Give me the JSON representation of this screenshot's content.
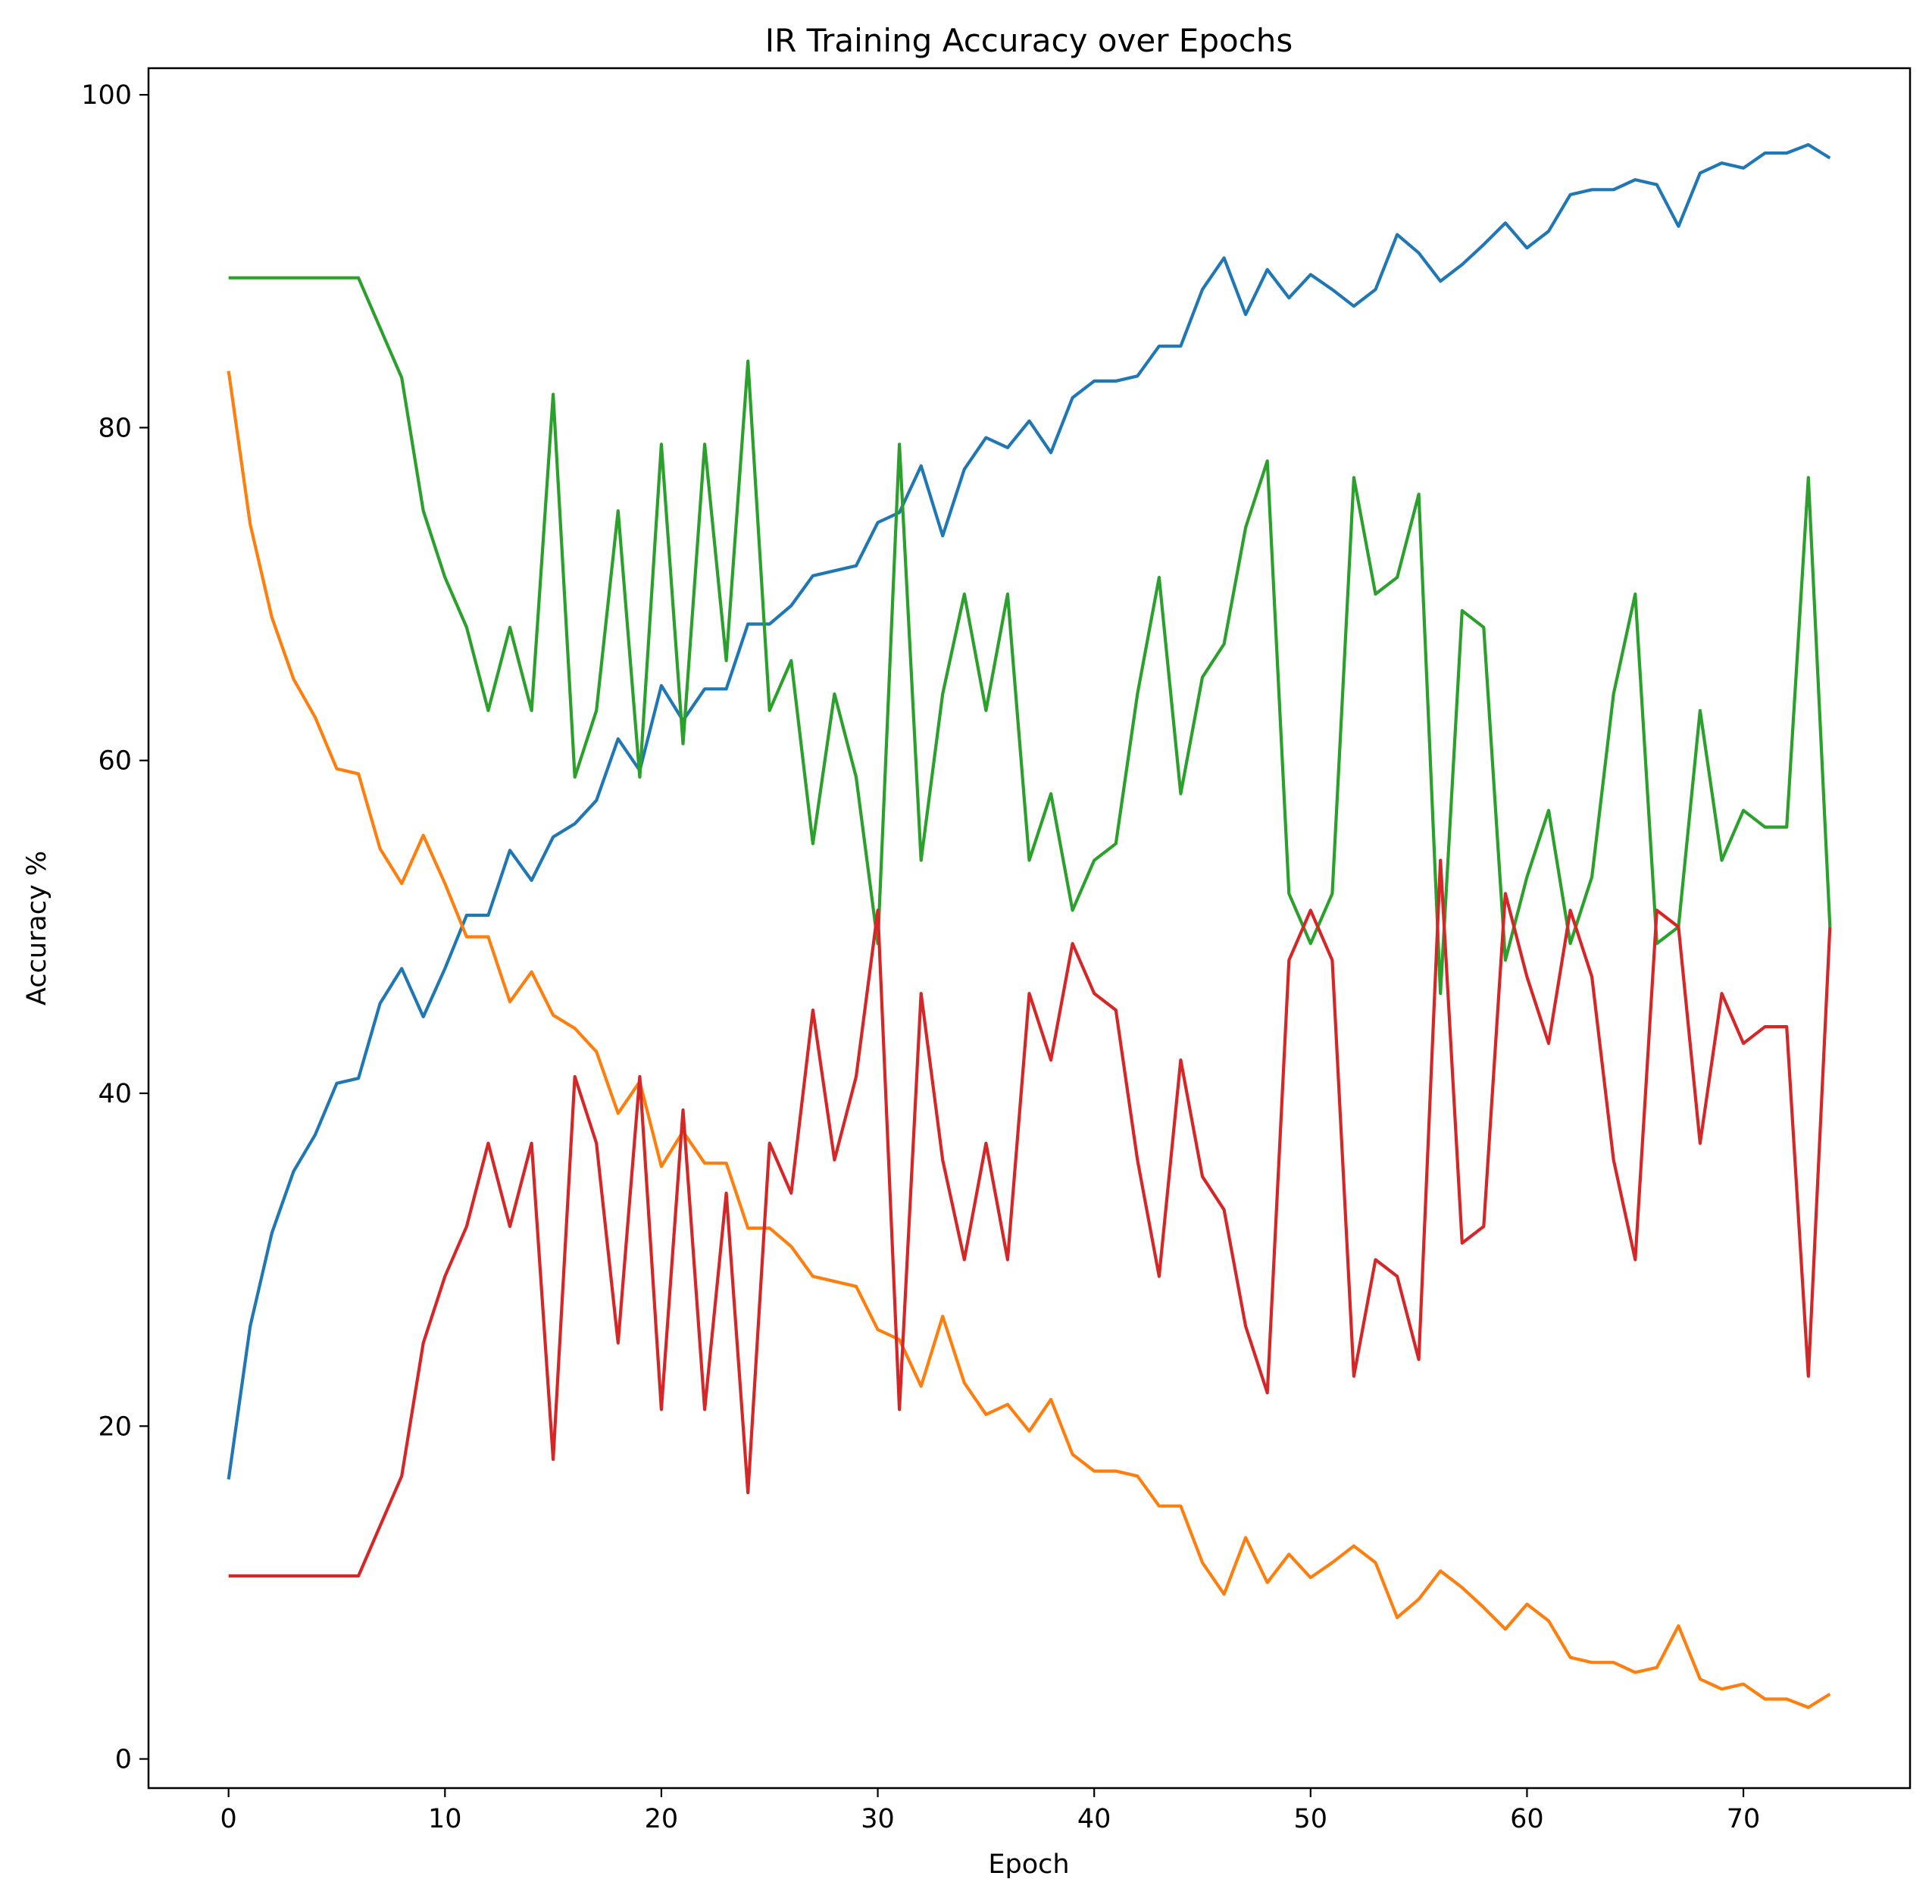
{
  "chart_data": {
    "type": "line",
    "title": "IR Training Accuracy over Epochs",
    "xlabel": "Epoch",
    "ylabel": "Accuracy %",
    "xlim": [
      -3.7,
      77.7
    ],
    "ylim": [
      -1.75,
      101.6
    ],
    "xticks": [
      0,
      10,
      20,
      30,
      40,
      50,
      60,
      70
    ],
    "yticks": [
      0,
      20,
      40,
      60,
      80,
      100
    ],
    "grid": false,
    "legend": "none",
    "series": [
      {
        "color": "#1f77b4",
        "values": [
          16.8,
          26.0,
          31.6,
          35.3,
          37.5,
          40.6,
          40.9,
          45.4,
          47.5,
          44.6,
          47.5,
          50.7,
          50.7,
          54.6,
          52.8,
          55.4,
          56.2,
          57.6,
          61.3,
          59.4,
          64.5,
          62.4,
          64.3,
          64.3,
          68.2,
          68.2,
          69.3,
          71.1,
          71.4,
          71.7,
          74.3,
          74.9,
          77.7,
          73.5,
          77.5,
          79.4,
          78.8,
          80.4,
          78.5,
          81.8,
          82.8,
          82.8,
          83.1,
          84.9,
          84.9,
          88.3,
          90.2,
          86.8,
          89.5,
          87.8,
          89.2,
          88.3,
          87.3,
          88.3,
          91.6,
          90.5,
          88.8,
          89.8,
          91.0,
          92.3,
          90.8,
          91.8,
          94.0,
          94.3,
          94.3,
          94.9,
          94.6,
          92.1,
          95.3,
          95.9,
          95.6,
          96.5,
          96.5,
          97.0,
          96.2
        ]
      },
      {
        "color": "#ff7f0e",
        "values": [
          83.4,
          74.2,
          68.6,
          64.9,
          62.6,
          59.5,
          59.2,
          54.7,
          52.6,
          55.5,
          52.6,
          49.4,
          49.4,
          45.5,
          47.3,
          44.7,
          43.9,
          42.5,
          38.8,
          40.7,
          35.6,
          37.7,
          35.8,
          35.8,
          31.9,
          31.9,
          30.8,
          29.0,
          28.7,
          28.4,
          25.8,
          25.2,
          22.4,
          26.6,
          22.6,
          20.7,
          21.3,
          19.7,
          21.6,
          18.3,
          17.3,
          17.3,
          17.0,
          15.2,
          15.2,
          11.8,
          9.9,
          13.3,
          10.6,
          12.3,
          10.9,
          11.8,
          12.8,
          11.8,
          8.5,
          9.6,
          11.3,
          10.3,
          9.1,
          7.8,
          9.3,
          8.3,
          6.1,
          5.8,
          5.8,
          5.2,
          5.5,
          8.0,
          4.8,
          4.2,
          4.5,
          3.6,
          3.6,
          3.1,
          3.9
        ]
      },
      {
        "color": "#2ca02c",
        "values": [
          89.0,
          89.0,
          89.0,
          89.0,
          89.0,
          89.0,
          89.0,
          86.0,
          83.0,
          75.0,
          71.0,
          68.0,
          63.0,
          68.0,
          63.0,
          82.0,
          59.0,
          63.0,
          75.0,
          59.0,
          79.0,
          61.0,
          79.0,
          66.0,
          84.0,
          63.0,
          66.0,
          55.0,
          64.0,
          59.0,
          49.0,
          79.0,
          54.0,
          64.0,
          70.0,
          63.0,
          70.0,
          54.0,
          58.0,
          51.0,
          54.0,
          55.0,
          64.0,
          71.0,
          58.0,
          65.0,
          67.0,
          74.0,
          78.0,
          52.0,
          49.0,
          52.0,
          77.0,
          70.0,
          71.0,
          76.0,
          46.0,
          69.0,
          68.0,
          48.0,
          53.0,
          57.0,
          49.0,
          53.0,
          64.0,
          70.0,
          49.0,
          50.0,
          63.0,
          54.0,
          57.0,
          56.0,
          56.0,
          77.0,
          50.0
        ]
      },
      {
        "color": "#d62728",
        "values": [
          11.0,
          11.0,
          11.0,
          11.0,
          11.0,
          11.0,
          11.0,
          14.0,
          17.0,
          25.0,
          29.0,
          32.0,
          37.0,
          32.0,
          37.0,
          18.0,
          41.0,
          37.0,
          25.0,
          41.0,
          21.0,
          39.0,
          21.0,
          34.0,
          16.0,
          37.0,
          34.0,
          45.0,
          36.0,
          41.0,
          51.0,
          21.0,
          46.0,
          36.0,
          30.0,
          37.0,
          30.0,
          46.0,
          42.0,
          49.0,
          46.0,
          45.0,
          36.0,
          29.0,
          42.0,
          35.0,
          33.0,
          26.0,
          22.0,
          48.0,
          51.0,
          48.0,
          23.0,
          30.0,
          29.0,
          24.0,
          54.0,
          31.0,
          32.0,
          52.0,
          47.0,
          43.0,
          51.0,
          47.0,
          36.0,
          30.0,
          51.0,
          50.0,
          37.0,
          46.0,
          43.0,
          44.0,
          44.0,
          23.0,
          50.0
        ]
      }
    ]
  }
}
